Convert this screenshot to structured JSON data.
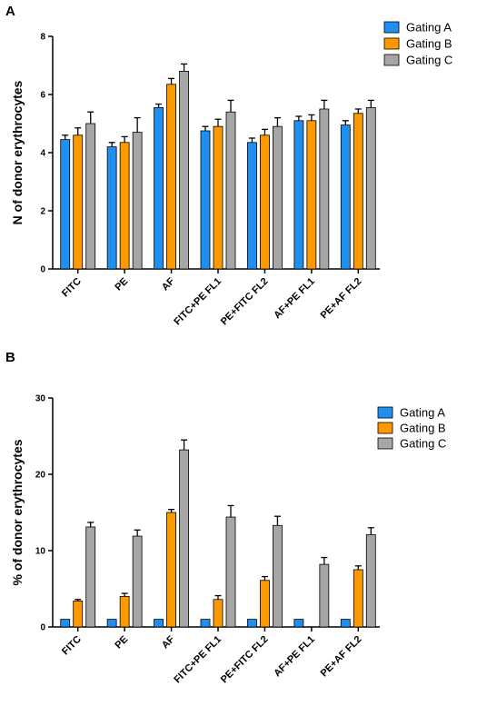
{
  "colors": {
    "gating_a": "#1f8ff0",
    "gating_b": "#ff9900",
    "gating_c": "#a6a6a6",
    "axis": "#000000"
  },
  "chart_data": [
    {
      "type": "bar",
      "panel_label": "A",
      "ylabel": "N of donor erythrocytes",
      "ylim": [
        0,
        8
      ],
      "yticks": [
        0,
        2,
        4,
        6,
        8
      ],
      "categories": [
        "FITC",
        "PE",
        "AF",
        "FITC+PE FL1",
        "PE+FITC FL2",
        "AF+PE FL1",
        "PE+AF FL2"
      ],
      "legend_position": "top-right",
      "series": [
        {
          "name": "Gating A",
          "values": [
            4.45,
            4.2,
            5.55,
            4.75,
            4.35,
            5.1,
            4.95
          ],
          "errors": [
            0.15,
            0.15,
            0.12,
            0.15,
            0.15,
            0.15,
            0.15
          ]
        },
        {
          "name": "Gating B",
          "values": [
            4.6,
            4.35,
            6.35,
            4.9,
            4.6,
            5.1,
            5.35
          ],
          "errors": [
            0.25,
            0.2,
            0.2,
            0.25,
            0.2,
            0.2,
            0.15
          ]
        },
        {
          "name": "Gating C",
          "values": [
            5.0,
            4.7,
            6.8,
            5.4,
            4.9,
            5.5,
            5.55
          ],
          "errors": [
            0.4,
            0.5,
            0.25,
            0.4,
            0.3,
            0.3,
            0.25
          ]
        }
      ]
    },
    {
      "type": "bar",
      "panel_label": "B",
      "ylabel": "% of donor erythrocytes",
      "ylim": [
        0,
        30
      ],
      "yticks": [
        0,
        10,
        20,
        30
      ],
      "categories": [
        "FITC",
        "PE",
        "AF",
        "FITC+PE FL1",
        "PE+FITC FL2",
        "AF+PE FL1",
        "PE+AF FL2"
      ],
      "legend_position": "top-right",
      "series": [
        {
          "name": "Gating A",
          "values": [
            1,
            1,
            1,
            1,
            1,
            1,
            1
          ],
          "errors": [
            0,
            0,
            0,
            0,
            0,
            0,
            0
          ]
        },
        {
          "name": "Gating B",
          "values": [
            3.4,
            4.0,
            15.0,
            3.6,
            6.1,
            0,
            7.5
          ],
          "errors": [
            0.2,
            0.4,
            0.4,
            0.5,
            0.5,
            0,
            0.5
          ]
        },
        {
          "name": "Gating C",
          "values": [
            13.1,
            11.9,
            23.2,
            14.4,
            13.3,
            8.2,
            12.1
          ],
          "errors": [
            0.6,
            0.8,
            1.3,
            1.5,
            1.2,
            0.9,
            0.9
          ]
        }
      ]
    }
  ]
}
